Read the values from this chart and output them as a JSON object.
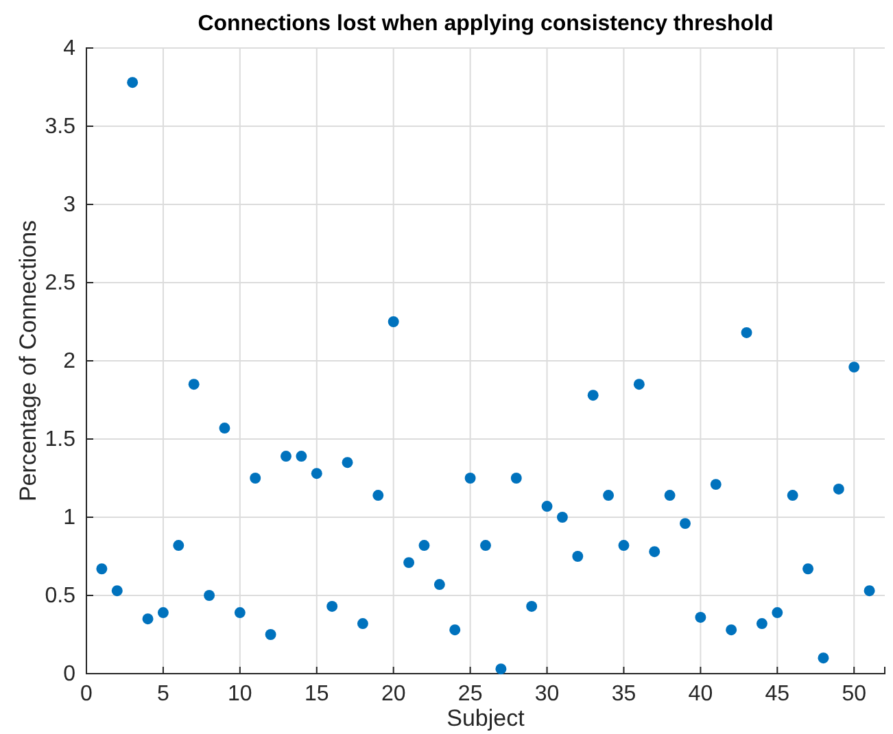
{
  "chart_data": {
    "type": "scatter",
    "title": "Connections lost when applying consistency threshold",
    "xlabel": "Subject",
    "ylabel": "Percentage of Connections",
    "x": [
      1,
      2,
      3,
      4,
      5,
      6,
      7,
      8,
      9,
      10,
      11,
      12,
      13,
      14,
      15,
      16,
      17,
      18,
      19,
      20,
      21,
      22,
      23,
      24,
      25,
      26,
      27,
      28,
      29,
      30,
      31,
      32,
      33,
      34,
      35,
      36,
      37,
      38,
      39,
      40,
      41,
      42,
      43,
      44,
      45,
      46,
      47,
      48,
      49,
      50,
      51
    ],
    "series": [
      {
        "color": "#0072bd",
        "values": [
          0.67,
          0.53,
          3.78,
          0.35,
          0.39,
          0.82,
          1.85,
          0.5,
          1.57,
          0.39,
          1.25,
          0.25,
          1.39,
          1.39,
          1.28,
          0.43,
          1.35,
          0.32,
          1.14,
          2.25,
          0.71,
          0.82,
          0.57,
          0.28,
          1.25,
          0.82,
          0.03,
          1.25,
          0.43,
          1.07,
          1.0,
          0.75,
          1.78,
          1.14,
          0.82,
          1.85,
          0.78,
          1.14,
          0.96,
          0.36,
          1.21,
          0.28,
          2.18,
          0.32,
          0.39,
          1.14,
          0.67,
          0.1,
          1.18,
          1.96,
          0.53
        ]
      }
    ],
    "xlim": [
      0,
      52
    ],
    "xticks": [
      0,
      5,
      10,
      15,
      20,
      25,
      30,
      35,
      40,
      45,
      50
    ],
    "ylim": [
      0,
      4
    ],
    "yticks": [
      0,
      0.5,
      1,
      1.5,
      2,
      2.5,
      3,
      3.5,
      4
    ],
    "grid": true,
    "marker": "circle"
  }
}
